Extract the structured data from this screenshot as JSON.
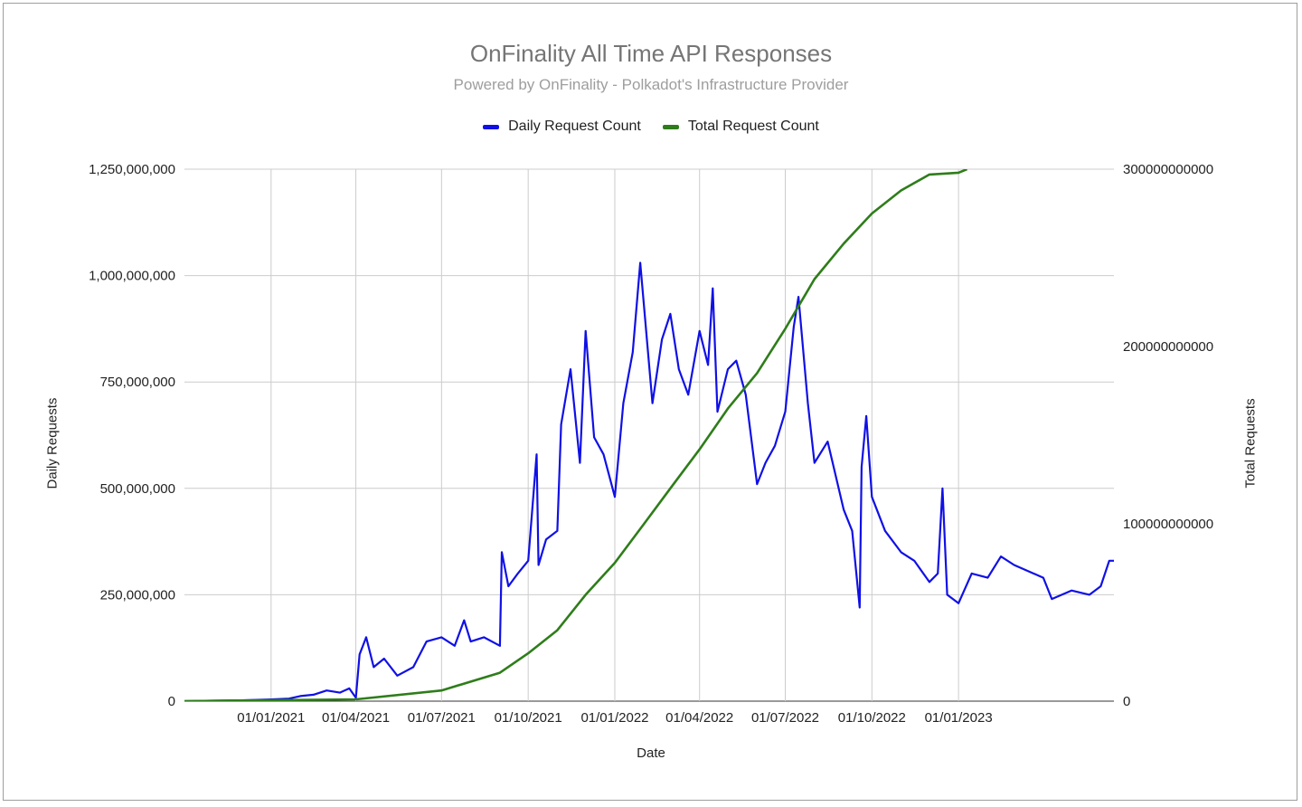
{
  "chart_data": {
    "type": "line",
    "title": "OnFinality All Time API Responses",
    "subtitle": "Powered by OnFinality - Polkadot's Infrastructure Provider",
    "xlabel": "Date",
    "ylabel_left": "Daily Requests",
    "ylabel_right": "Total Requests",
    "x_ticks": [
      "01/01/2021",
      "01/04/2021",
      "01/07/2021",
      "01/10/2021",
      "01/01/2022",
      "01/04/2022",
      "01/07/2022",
      "01/10/2022",
      "01/01/2023"
    ],
    "x_range": [
      "2020-10-01",
      "2023-06-15"
    ],
    "y_left_ticks": [
      "0",
      "250,000,000",
      "500,000,000",
      "750,000,000",
      "1,000,000,000",
      "1,250,000,000"
    ],
    "y_left_range": [
      0,
      1250000000
    ],
    "y_right_ticks": [
      "0",
      "100000000000",
      "200000000000",
      "300000000000"
    ],
    "y_right_range": [
      0,
      300000000000
    ],
    "grid": true,
    "legend_position": "top",
    "series": [
      {
        "name": "Daily Request Count",
        "color": "#1010e6",
        "axis": "left",
        "points": [
          [
            "2020-10-01",
            0
          ],
          [
            "2020-11-01",
            1000000
          ],
          [
            "2020-12-01",
            2000000
          ],
          [
            "2021-01-01",
            4000000
          ],
          [
            "2021-01-20",
            6000000
          ],
          [
            "2021-02-01",
            12000000
          ],
          [
            "2021-02-15",
            15000000
          ],
          [
            "2021-03-01",
            25000000
          ],
          [
            "2021-03-15",
            20000000
          ],
          [
            "2021-03-25",
            30000000
          ],
          [
            "2021-04-01",
            8000000
          ],
          [
            "2021-04-05",
            110000000
          ],
          [
            "2021-04-12",
            150000000
          ],
          [
            "2021-04-20",
            80000000
          ],
          [
            "2021-05-01",
            100000000
          ],
          [
            "2021-05-15",
            60000000
          ],
          [
            "2021-06-01",
            80000000
          ],
          [
            "2021-06-15",
            140000000
          ],
          [
            "2021-07-01",
            150000000
          ],
          [
            "2021-07-15",
            130000000
          ],
          [
            "2021-07-25",
            190000000
          ],
          [
            "2021-08-01",
            140000000
          ],
          [
            "2021-08-15",
            150000000
          ],
          [
            "2021-09-01",
            130000000
          ],
          [
            "2021-09-03",
            350000000
          ],
          [
            "2021-09-10",
            270000000
          ],
          [
            "2021-09-20",
            300000000
          ],
          [
            "2021-10-01",
            330000000
          ],
          [
            "2021-10-10",
            580000000
          ],
          [
            "2021-10-12",
            320000000
          ],
          [
            "2021-10-20",
            380000000
          ],
          [
            "2021-11-01",
            400000000
          ],
          [
            "2021-11-05",
            650000000
          ],
          [
            "2021-11-15",
            780000000
          ],
          [
            "2021-11-25",
            560000000
          ],
          [
            "2021-12-01",
            870000000
          ],
          [
            "2021-12-10",
            620000000
          ],
          [
            "2021-12-20",
            580000000
          ],
          [
            "2022-01-01",
            480000000
          ],
          [
            "2022-01-10",
            700000000
          ],
          [
            "2022-01-20",
            820000000
          ],
          [
            "2022-01-28",
            1030000000
          ],
          [
            "2022-02-10",
            700000000
          ],
          [
            "2022-02-20",
            850000000
          ],
          [
            "2022-03-01",
            910000000
          ],
          [
            "2022-03-10",
            780000000
          ],
          [
            "2022-03-20",
            720000000
          ],
          [
            "2022-04-01",
            870000000
          ],
          [
            "2022-04-10",
            790000000
          ],
          [
            "2022-04-15",
            970000000
          ],
          [
            "2022-04-20",
            680000000
          ],
          [
            "2022-05-01",
            780000000
          ],
          [
            "2022-05-10",
            800000000
          ],
          [
            "2022-05-20",
            720000000
          ],
          [
            "2022-06-01",
            510000000
          ],
          [
            "2022-06-10",
            560000000
          ],
          [
            "2022-06-20",
            600000000
          ],
          [
            "2022-07-01",
            680000000
          ],
          [
            "2022-07-10",
            880000000
          ],
          [
            "2022-07-15",
            950000000
          ],
          [
            "2022-07-25",
            700000000
          ],
          [
            "2022-08-01",
            560000000
          ],
          [
            "2022-08-15",
            610000000
          ],
          [
            "2022-09-01",
            450000000
          ],
          [
            "2022-09-10",
            400000000
          ],
          [
            "2022-09-18",
            220000000
          ],
          [
            "2022-09-20",
            550000000
          ],
          [
            "2022-09-25",
            670000000
          ],
          [
            "2022-10-01",
            480000000
          ],
          [
            "2022-10-15",
            400000000
          ],
          [
            "2022-11-01",
            350000000
          ],
          [
            "2022-11-15",
            330000000
          ],
          [
            "2022-12-01",
            280000000
          ],
          [
            "2022-12-10",
            300000000
          ],
          [
            "2022-12-15",
            500000000
          ],
          [
            "2022-12-20",
            250000000
          ],
          [
            "2023-01-01",
            230000000
          ],
          [
            "2023-01-15",
            300000000
          ],
          [
            "2023-02-01",
            290000000
          ],
          [
            "2023-02-15",
            340000000
          ],
          [
            "2023-03-01",
            320000000
          ],
          [
            "2023-04-01",
            290000000
          ],
          [
            "2023-04-10",
            240000000
          ],
          [
            "2023-05-01",
            260000000
          ],
          [
            "2023-05-20",
            250000000
          ],
          [
            "2023-06-01",
            270000000
          ],
          [
            "2023-06-10",
            330000000
          ],
          [
            "2023-06-15",
            330000000
          ]
        ]
      },
      {
        "name": "Total Request Count",
        "color": "#2e7d1a",
        "axis": "right",
        "points": [
          [
            "2020-10-01",
            0
          ],
          [
            "2021-04-01",
            1000000000
          ],
          [
            "2021-07-01",
            6000000000
          ],
          [
            "2021-09-01",
            16000000000
          ],
          [
            "2021-10-01",
            27000000000
          ],
          [
            "2021-11-01",
            40000000000
          ],
          [
            "2021-12-01",
            60000000000
          ],
          [
            "2022-01-01",
            78000000000
          ],
          [
            "2022-02-01",
            100000000000
          ],
          [
            "2022-03-01",
            120000000000
          ],
          [
            "2022-04-01",
            142000000000
          ],
          [
            "2022-05-01",
            165000000000
          ],
          [
            "2022-06-01",
            185000000000
          ],
          [
            "2022-07-01",
            210000000000
          ],
          [
            "2022-08-01",
            238000000000
          ],
          [
            "2022-09-01",
            258000000000
          ],
          [
            "2022-10-01",
            275000000000
          ],
          [
            "2022-11-01",
            288000000000
          ],
          [
            "2022-12-01",
            297000000000
          ],
          [
            "2023-01-01",
            298000000000
          ],
          [
            "2023-01-10",
            300000000000
          ]
        ]
      }
    ]
  }
}
